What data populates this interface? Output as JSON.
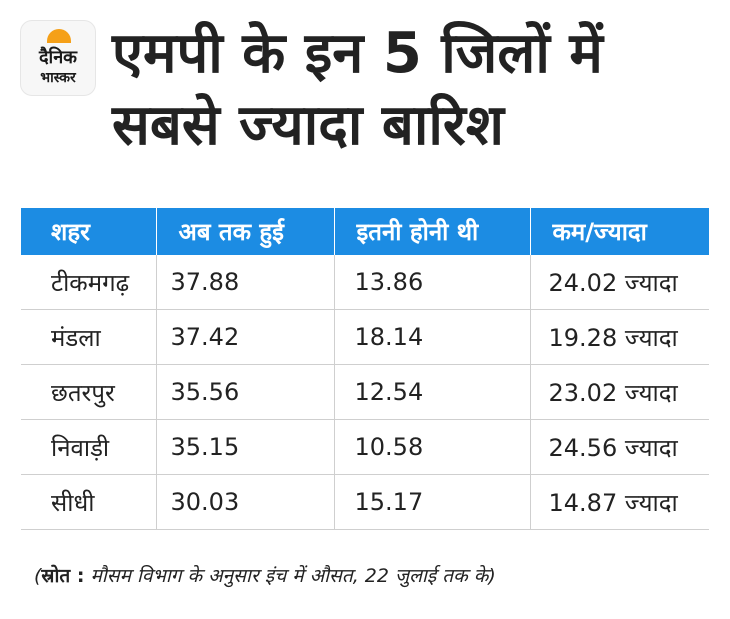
{
  "brand": {
    "line1": "दैनिक",
    "line2": "भास्कर",
    "accent_color": "#f5a018"
  },
  "title": "एमपी के इन 5 जिलों में सबसे ज्यादा बारिश",
  "table": {
    "header_color": "#1c8ce3",
    "headers": [
      "शहर",
      "अब तक हुई",
      "इतनी होनी थी",
      "कम/ज्यादा"
    ],
    "rows": [
      [
        "टीकमगढ़",
        "37.88",
        "13.86",
        "24.02 ज्यादा"
      ],
      [
        "मंडला",
        "37.42",
        "18.14",
        "19.28 ज्यादा"
      ],
      [
        "छतरपुर",
        "35.56",
        "12.54",
        "23.02 ज्यादा"
      ],
      [
        "निवाड़ी",
        "35.15",
        "10.58",
        "24.56 ज्यादा"
      ],
      [
        "सीधी",
        "30.03",
        "15.17",
        "14.87 ज्यादा"
      ]
    ]
  },
  "note": {
    "prefix": "(",
    "label": "स्रोत :",
    "text": " मौसम विभाग के अनुसार इंच में औसत, 22 जुलाई तक के)"
  }
}
